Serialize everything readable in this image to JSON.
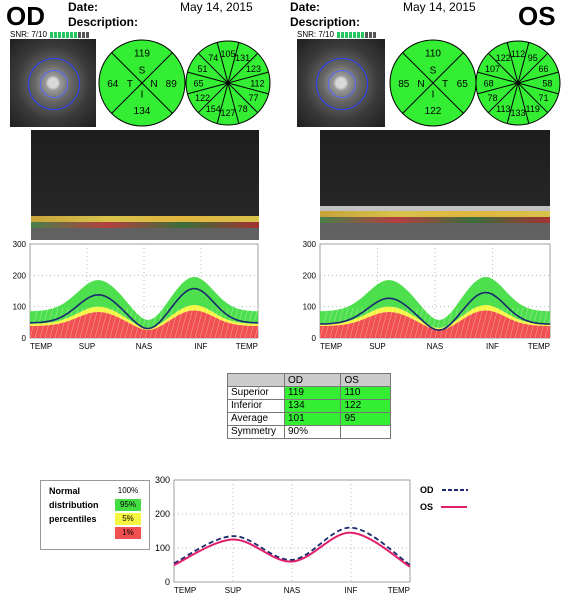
{
  "headers": {
    "date_label": "Date:",
    "description_label": "Description:",
    "date_value": "May 14, 2015"
  },
  "od": {
    "eye": "OD",
    "snr": "SNR: 7/10",
    "quadrants": {
      "S": "119",
      "N": "89",
      "I": "134",
      "T": "64"
    },
    "quadrant_letters": {
      "S": "S",
      "N": "N",
      "I": "I",
      "T": "T"
    },
    "clock_hours": [
      "131",
      "123",
      "112",
      "77",
      "78",
      "127",
      "154",
      "122",
      "65",
      "51",
      "74",
      "105"
    ]
  },
  "os": {
    "eye": "OS",
    "snr": "SNR: 7/10",
    "quadrants": {
      "S": "110",
      "N": "85",
      "I": "122",
      "T": "65"
    },
    "quadrant_letters": {
      "S": "S",
      "N": "N",
      "I": "I",
      "T": "T"
    },
    "clock_hours": [
      "95",
      "66",
      "58",
      "71",
      "119",
      "133",
      "113",
      "78",
      "68",
      "107",
      "122",
      "112"
    ]
  },
  "tsnit_axis": {
    "y_ticks": [
      "300",
      "200",
      "100",
      "0"
    ],
    "x_ticks": [
      "TEMP",
      "SUP",
      "NAS",
      "INF",
      "TEMP"
    ]
  },
  "table": {
    "columns": [
      "",
      "OD",
      "OS"
    ],
    "rows": [
      {
        "label": "Superior",
        "od": "119",
        "os": "110"
      },
      {
        "label": "Inferior",
        "od": "134",
        "os": "122"
      },
      {
        "label": "Average",
        "od": "101",
        "os": "95"
      },
      {
        "label": "Symmetry",
        "od": "90%",
        "os": ""
      }
    ]
  },
  "legend": {
    "line1": "Normal",
    "line2": "distribution",
    "line3": "percentiles",
    "p100": "100%",
    "p95": "95%",
    "p5": "5%",
    "p1": "1%",
    "od_label": "OD",
    "os_label": "OS"
  },
  "colors": {
    "normal_green": "#44dd44",
    "borderline_yellow": "#f5f542",
    "below_red": "#f05050",
    "od_line": "#1a2a6e",
    "os_line": "#e0206a",
    "panel_green": "#33ee33"
  },
  "chart_data": {
    "type": "line",
    "x": [
      "TEMP",
      "SUP",
      "NAS",
      "INF",
      "TEMP"
    ],
    "ylim": [
      0,
      300
    ],
    "series": [
      {
        "name": "OD",
        "values": [
          55,
          135,
          65,
          160,
          50
        ]
      },
      {
        "name": "OS",
        "values": [
          50,
          125,
          60,
          145,
          45
        ]
      }
    ]
  }
}
